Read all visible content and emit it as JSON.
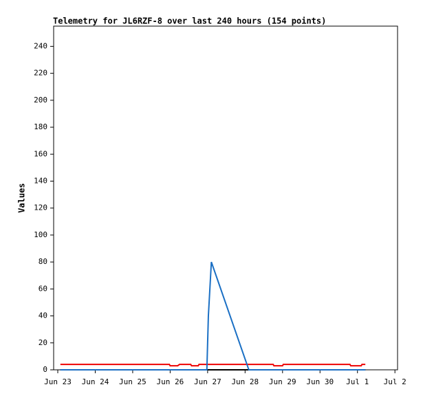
{
  "chart_data": {
    "type": "line",
    "title": "Telemetry for JL6RZF-8 over last 240 hours (154 points)",
    "y_label": "Values",
    "xlim": [
      -0.11,
      9.07
    ],
    "xticks": [
      {
        "value": 0,
        "label": "Jun 23"
      },
      {
        "value": 1,
        "label": "Jun 24"
      },
      {
        "value": 2,
        "label": "Jun 25"
      },
      {
        "value": 3,
        "label": "Jun 26"
      },
      {
        "value": 4,
        "label": "Jun 27"
      },
      {
        "value": 5,
        "label": "Jun 28"
      },
      {
        "value": 6,
        "label": "Jun 29"
      },
      {
        "value": 7,
        "label": "Jun 30"
      },
      {
        "value": 8,
        "label": "Jul 1"
      },
      {
        "value": 9,
        "label": "Jul 2"
      }
    ],
    "ylim": [
      0,
      255
    ],
    "yticks": [
      0,
      20,
      40,
      60,
      80,
      100,
      120,
      140,
      160,
      180,
      200,
      220,
      240
    ],
    "series": [
      {
        "color": "#000000",
        "x": [
          0.07,
          8.21
        ],
        "values": [
          0,
          0
        ]
      },
      {
        "color": "#ee0000",
        "x": [
          0.07,
          2.98,
          3.0,
          3.2,
          3.25,
          3.55,
          3.57,
          3.75,
          3.77,
          5.75,
          5.77,
          6.0,
          6.02,
          7.8,
          7.82,
          8.1,
          8.12,
          8.21
        ],
        "values": [
          4,
          4,
          3,
          3,
          4,
          4,
          3,
          3,
          4,
          4,
          3,
          3,
          4,
          4,
          3,
          3,
          4,
          4
        ]
      },
      {
        "color": "#1a6fc4",
        "x": [
          0.07,
          3.98,
          4.02,
          4.1,
          5.1,
          8.21
        ],
        "values": [
          0,
          0,
          40,
          80,
          0,
          0
        ]
      }
    ]
  }
}
